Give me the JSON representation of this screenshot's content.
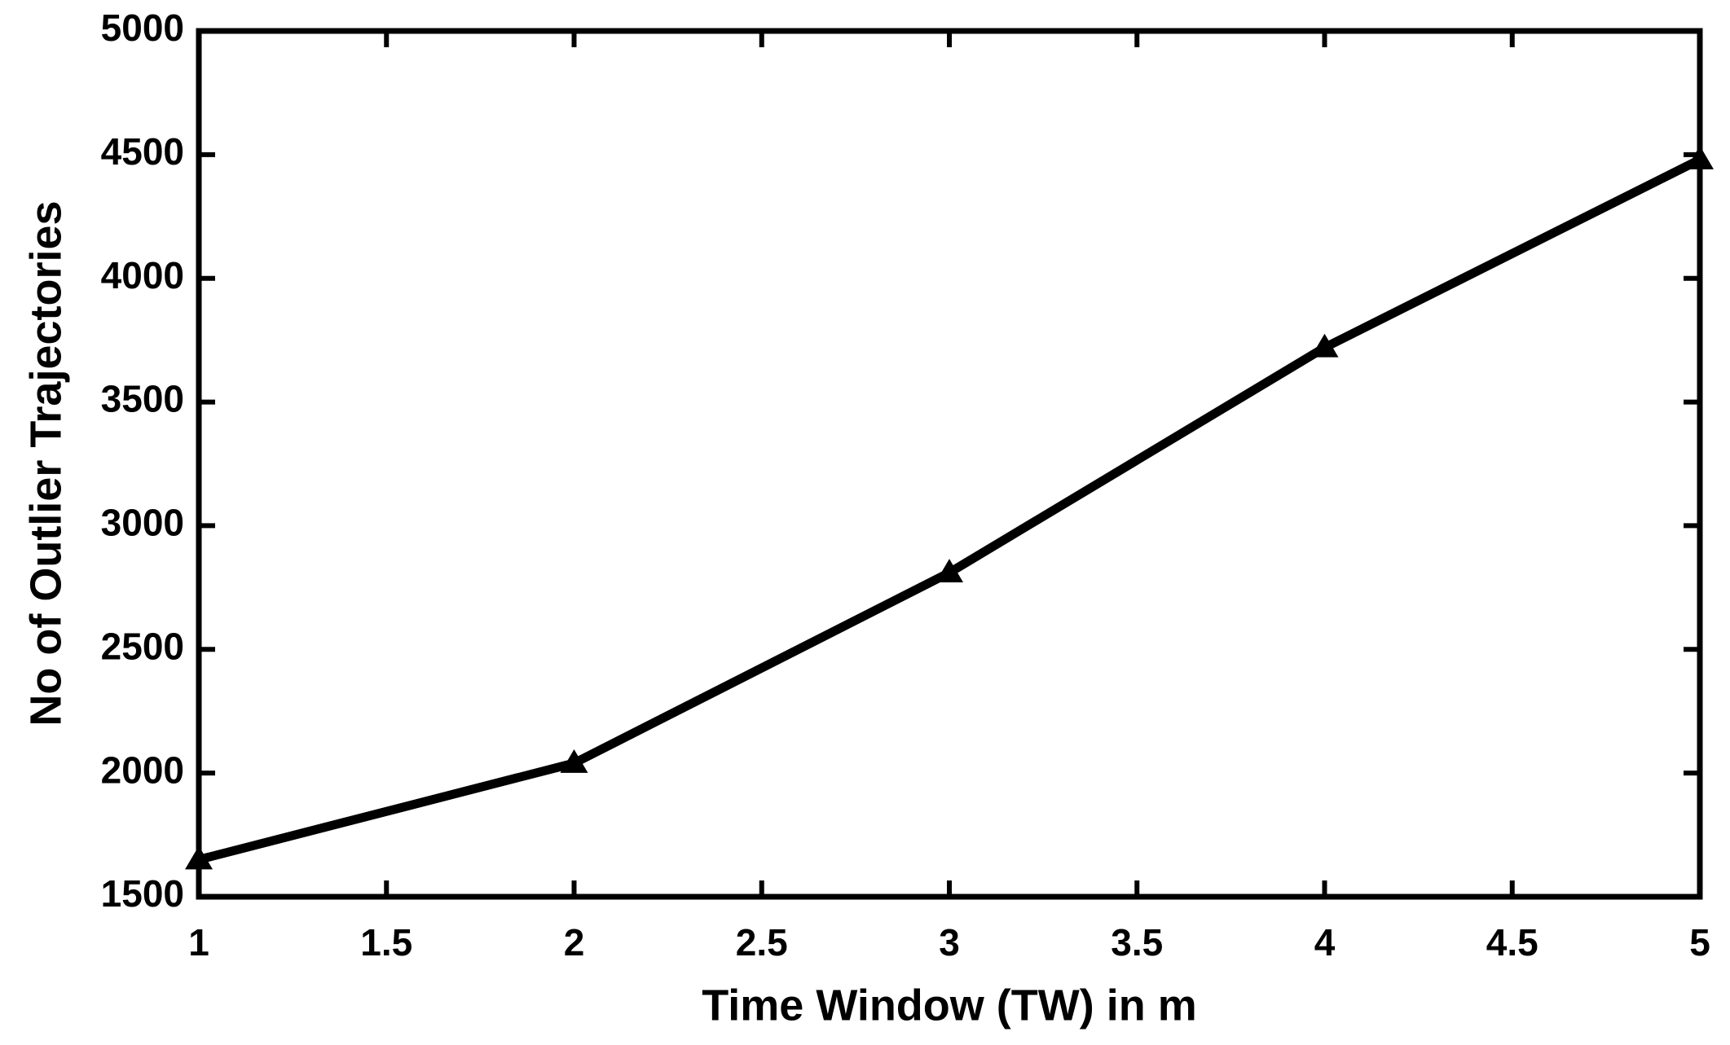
{
  "chart_data": {
    "type": "line",
    "x_label": "Time Window (TW) in m",
    "y_label": "No of Outlier Trajectories",
    "x": [
      1,
      2,
      3,
      4,
      5
    ],
    "values": [
      1650,
      2040,
      2810,
      3720,
      4480
    ],
    "color": "#000000",
    "marker": "triangle",
    "xlim": [
      1,
      5
    ],
    "xticks": [
      1,
      1.5,
      2,
      2.5,
      3,
      3.5,
      4,
      4.5,
      5
    ],
    "ylim": [
      1500,
      5000
    ],
    "yticks": [
      1500,
      2000,
      2500,
      3000,
      3500,
      4000,
      4500,
      5000
    ],
    "grid": false
  }
}
